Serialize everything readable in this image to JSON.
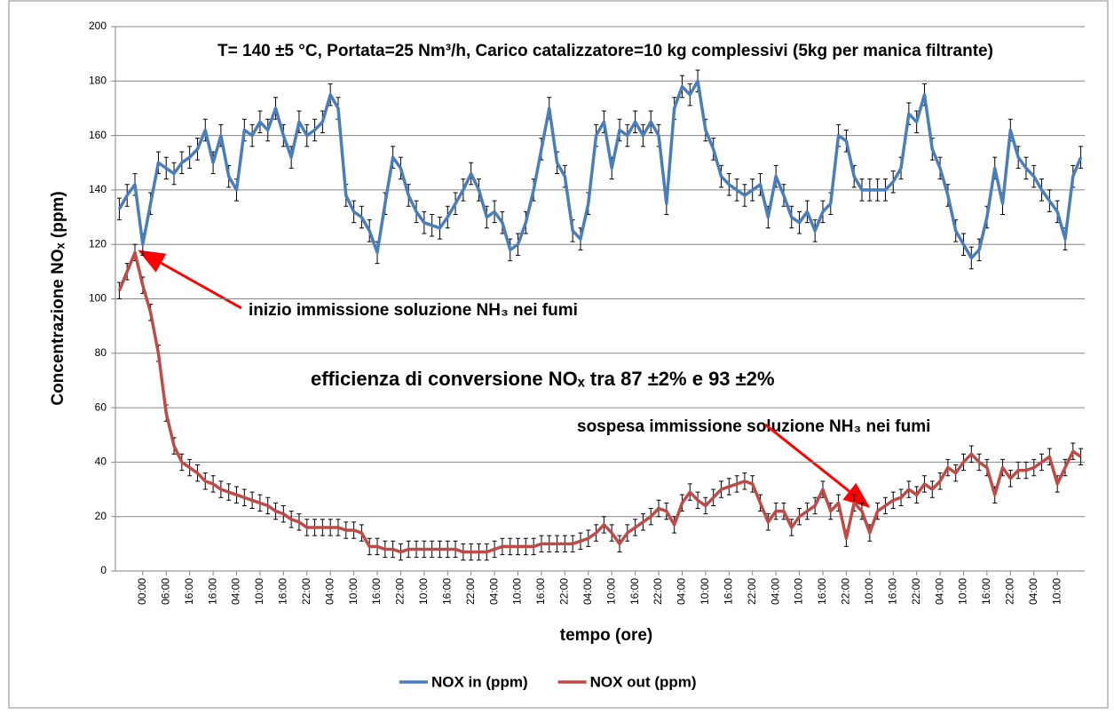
{
  "chart_data": {
    "type": "line",
    "title": "T= 140 ±5 °C, Portata=25 Nm³/h, Carico catalizzatore=10 kg complessivi (5kg per manica filtrante)",
    "annotations": [
      "inizio immissione soluzione NH₃ nei fumi",
      "efficienza di conversione NOₓ tra 87 ±2%  e 93 ±2%",
      "sospesa immissione soluzione NH₃ nei fumi"
    ],
    "x_label": "tempo (ore)",
    "y_label": "Concentrazione NOₓ (ppm)",
    "categories": [
      null,
      null,
      null,
      "00:00",
      null,
      null,
      "06:00",
      null,
      null,
      "16:00",
      null,
      null,
      "16:00",
      null,
      null,
      "04:00",
      null,
      null,
      "10:00",
      null,
      null,
      "16:00",
      null,
      null,
      "22:00",
      null,
      null,
      "04:00",
      null,
      null,
      "10:00",
      null,
      null,
      "16:00",
      null,
      null,
      "22:00",
      null,
      null,
      "10:00",
      null,
      null,
      "16:00",
      null,
      null,
      "22:00",
      null,
      null,
      "04:00",
      null,
      null,
      "10:00",
      null,
      null,
      "16:00",
      null,
      null,
      "22:00",
      null,
      null,
      "04:00",
      null,
      null,
      "10:00",
      null,
      null,
      "16:00",
      null,
      null,
      "22:00",
      null,
      null,
      "04:00",
      null,
      null,
      "10:00",
      null,
      null,
      "16:00",
      null,
      null,
      "22:00",
      null,
      null,
      "04:00",
      null,
      null,
      "10:00",
      null,
      null,
      "16:00",
      null,
      null,
      "22:00",
      null,
      null,
      "10:00",
      null,
      null,
      "16:00",
      null,
      null,
      "22:00",
      null,
      null,
      "04:00",
      null,
      null,
      "10:00",
      null,
      null,
      "16:00",
      null,
      null,
      "22:00",
      null,
      null,
      "04:00",
      null,
      null,
      "10:00",
      null,
      null,
      null
    ],
    "series": [
      {
        "name": "NOX in (ppm)",
        "color": "#4a7ebb",
        "error": 4,
        "values": [
          133,
          138,
          142,
          120,
          135,
          150,
          148,
          146,
          150,
          152,
          155,
          162,
          150,
          160,
          145,
          140,
          162,
          160,
          165,
          162,
          170,
          160,
          152,
          165,
          160,
          162,
          165,
          175,
          170,
          138,
          132,
          130,
          125,
          117,
          135,
          152,
          148,
          138,
          132,
          128,
          127,
          126,
          130,
          135,
          140,
          146,
          140,
          130,
          132,
          128,
          118,
          120,
          128,
          140,
          155,
          170,
          150,
          145,
          125,
          122,
          135,
          160,
          165,
          148,
          162,
          160,
          165,
          160,
          165,
          160,
          135,
          170,
          178,
          175,
          180,
          162,
          155,
          145,
          142,
          140,
          138,
          140,
          142,
          130,
          145,
          138,
          130,
          128,
          132,
          125,
          132,
          135,
          160,
          158,
          145,
          140,
          140,
          140,
          140,
          143,
          148,
          168,
          165,
          175,
          155,
          148,
          138,
          125,
          120,
          115,
          118,
          130,
          148,
          135,
          162,
          152,
          148,
          145,
          140,
          136,
          132,
          122,
          145,
          152
        ]
      },
      {
        "name": "NOX out (ppm)",
        "color": "#be4b48",
        "error": 3,
        "values": [
          103,
          110,
          117,
          105,
          95,
          80,
          58,
          46,
          40,
          38,
          36,
          33,
          32,
          30,
          29,
          28,
          27,
          26,
          25,
          24,
          22,
          21,
          19,
          18,
          16,
          16,
          16,
          16,
          16,
          15,
          15,
          14,
          9,
          9,
          8,
          8,
          7,
          8,
          8,
          8,
          8,
          8,
          8,
          8,
          7,
          7,
          7,
          7,
          8,
          9,
          9,
          9,
          9,
          9,
          10,
          10,
          10,
          10,
          10,
          11,
          12,
          14,
          17,
          14,
          10,
          14,
          16,
          18,
          20,
          23,
          22,
          17,
          25,
          29,
          26,
          24,
          27,
          30,
          31,
          32,
          33,
          32,
          25,
          18,
          22,
          22,
          16,
          20,
          22,
          24,
          30,
          22,
          25,
          12,
          25,
          22,
          14,
          22,
          24,
          26,
          27,
          30,
          28,
          32,
          30,
          33,
          38,
          36,
          40,
          43,
          40,
          38,
          28,
          38,
          34,
          37,
          37,
          38,
          40,
          42,
          32,
          38,
          44,
          42
        ]
      }
    ],
    "ylim": [
      0,
      200
    ],
    "yticks": [
      0,
      20,
      40,
      60,
      80,
      100,
      120,
      140,
      160,
      180,
      200
    ],
    "grid": true,
    "legend": "bottom"
  }
}
